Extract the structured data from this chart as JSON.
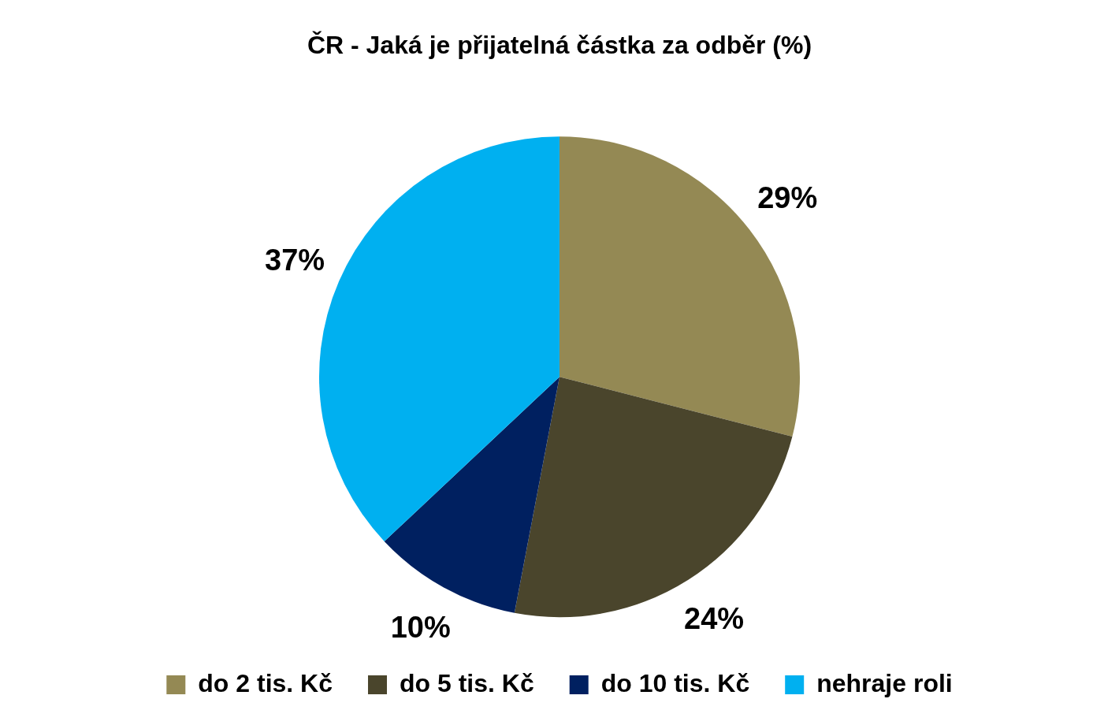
{
  "chart_data": {
    "type": "pie",
    "title": "ČR - Jaká je přijatelná částka za odběr (%)",
    "categories": [
      "do 2 tis. Kč",
      "do 5 tis. Kč",
      "do 10 tis. Kč",
      "nehraje roli"
    ],
    "values": [
      29,
      24,
      10,
      37
    ],
    "colors": [
      "#948954",
      "#4a452c",
      "#002060",
      "#00b0f0"
    ],
    "value_labels": [
      "29%",
      "24%",
      "10%",
      "37%"
    ],
    "legend": "bottom"
  }
}
